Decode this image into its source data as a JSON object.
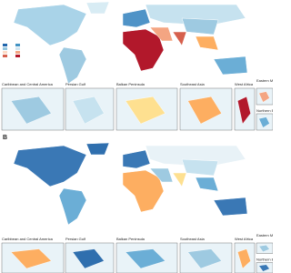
{
  "panels": [
    {
      "insets": [
        "Caribbean and Central America",
        "Persian Gulf",
        "Balkan Peninsula",
        "Southeast Asia",
        "West Africa",
        "Eastern Mediterranean",
        "Northern Europe"
      ]
    },
    {
      "label": "B",
      "insets": [
        "Caribbean and Central America",
        "Persian Gulf",
        "Balkan Peninsula",
        "Southeast Asia",
        "West Africa",
        "Eastern Mediterranean",
        "Northern Europe"
      ]
    }
  ]
}
